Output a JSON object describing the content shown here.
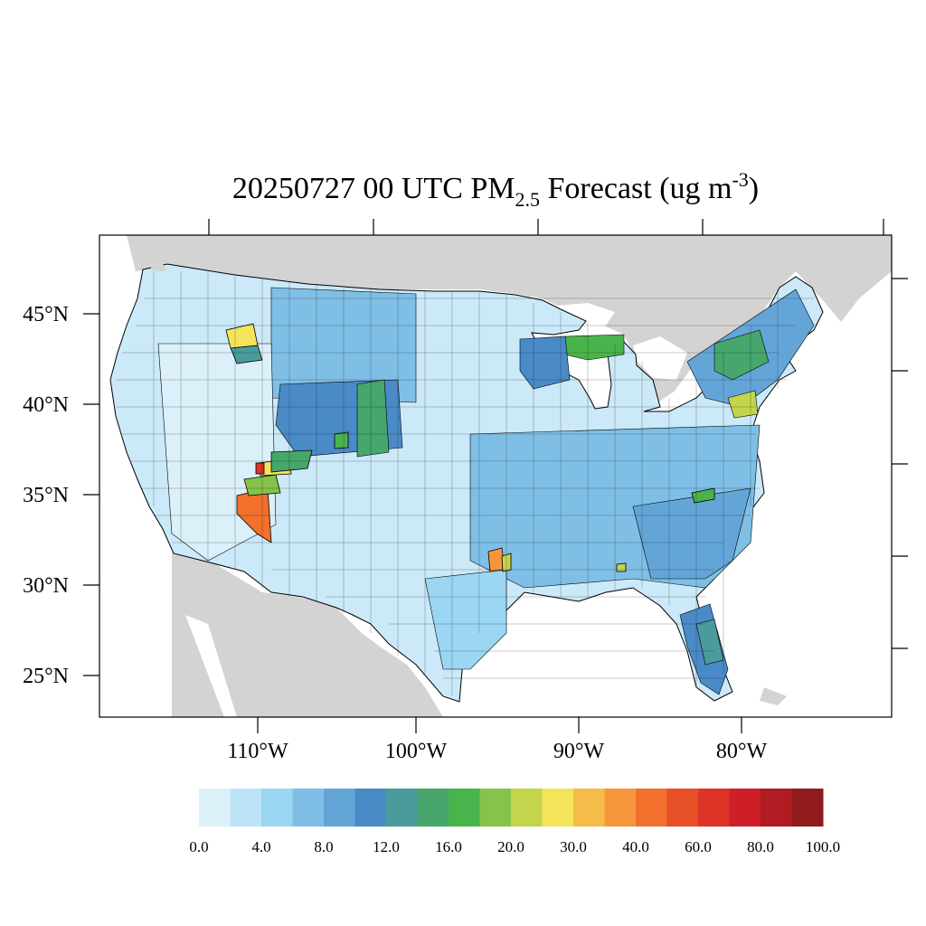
{
  "title": {
    "prefix": "20250727 00 UTC PM",
    "subscript": "2.5",
    "middle": " Forecast (ug m",
    "superscript": "-3",
    "suffix": ")"
  },
  "map": {
    "region": "Contiguous United States",
    "variable": "PM2.5",
    "unit": "ug m-3",
    "land_outside_color": "#d3d3d3",
    "water_color": "#ffffff",
    "boundary_color": "#000000",
    "lat_labels": [
      "45°N",
      "40°N",
      "35°N",
      "30°N",
      "25°N"
    ],
    "lon_labels": [
      "110°W",
      "100°W",
      "90°W",
      "80°W"
    ],
    "high_value_areas": [
      {
        "area": "Northwest Wyoming",
        "level": "30.0"
      },
      {
        "area": "Southwest Arizona",
        "level": "40.0"
      },
      {
        "area": "Utah / Colorado border",
        "level": "20.0–40.0"
      },
      {
        "area": "Eastern Colorado",
        "level": "16.0"
      },
      {
        "area": "Upper Michigan",
        "level": "16.0–20.0"
      },
      {
        "area": "Eastern Texas / Louisiana",
        "level": "30.0–40.0"
      },
      {
        "area": "Pennsylvania",
        "level": "20.0"
      },
      {
        "area": "Northern New York / New England",
        "level": "16.0"
      },
      {
        "area": "Central Florida",
        "level": "12.0–16.0"
      }
    ]
  },
  "colorbar": {
    "colors": [
      "#dcf0fa",
      "#bde3f7",
      "#9bd6f3",
      "#7fbfe6",
      "#64a5d8",
      "#4a8ac7",
      "#4a9c9c",
      "#46a66c",
      "#4ab44c",
      "#84c44a",
      "#c4d44c",
      "#f4e45a",
      "#f6bc4a",
      "#f6963c",
      "#f0702c",
      "#e85028",
      "#de3426",
      "#ce1e28",
      "#b01c22",
      "#901a1c"
    ],
    "labels": [
      "0.0",
      "4.0",
      "8.0",
      "12.0",
      "16.0",
      "20.0",
      "30.0",
      "40.0",
      "60.0",
      "80.0",
      "100.0"
    ]
  }
}
